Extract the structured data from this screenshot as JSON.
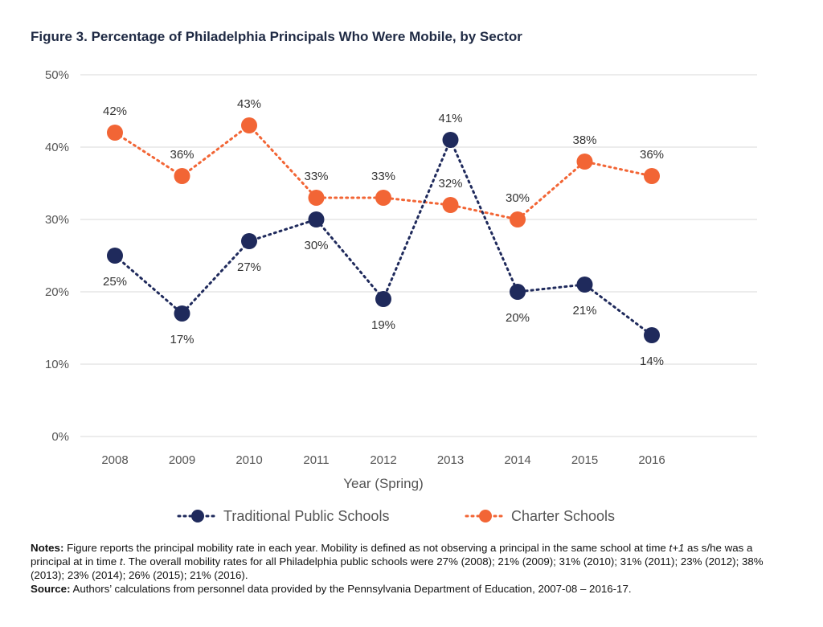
{
  "figure": {
    "title": "Figure 3. Percentage of Philadelphia Principals Who Were Mobile, by Sector"
  },
  "chart_data": {
    "type": "line",
    "title": "Figure 3. Percentage of Philadelphia Principals Who Were Mobile, by Sector",
    "xlabel": "Year (Spring)",
    "ylabel": "",
    "x": [
      "2008",
      "2009",
      "2010",
      "2011",
      "2012",
      "2013",
      "2014",
      "2015",
      "2016"
    ],
    "ylim": [
      0,
      50
    ],
    "yticks": [
      "0%",
      "10%",
      "20%",
      "30%",
      "40%",
      "50%"
    ],
    "grid": "horizontal",
    "legend": "bottom",
    "series": [
      {
        "name": "Traditional Public Schools",
        "color": "#1f2a5c",
        "values": [
          25,
          17,
          27,
          30,
          19,
          41,
          20,
          21,
          14
        ],
        "labels": [
          "25%",
          "17%",
          "27%",
          "30%",
          "19%",
          "41%",
          "20%",
          "21%",
          "14%"
        ]
      },
      {
        "name": "Charter Schools",
        "color": "#f26535",
        "values": [
          42,
          36,
          43,
          33,
          33,
          32,
          30,
          38,
          36
        ],
        "labels": [
          "42%",
          "36%",
          "43%",
          "33%",
          "33%",
          "32%",
          "30%",
          "38%",
          "36%"
        ]
      }
    ]
  },
  "notes": {
    "notes_label": "Notes:",
    "notes_text_1": " Figure reports the principal mobility rate in each year. Mobility is defined as not observing a principal in the same school at time ",
    "notes_t1": "t+1",
    "notes_text_2": " as s/he was a principal at in time ",
    "notes_t": "t",
    "notes_text_3": ". The overall mobility rates for all Philadelphia public schools were 27% (2008); 21% (2009); 31% (2010); 31% (2011); 23% (2012); 38% (2013); 23% (2014); 26% (2015); 21% (2016).",
    "source_label": "Source:",
    "source_text": " Authors’ calculations from personnel data provided by the Pennsylvania Department of Education, 2007-08 – 2016-17."
  }
}
